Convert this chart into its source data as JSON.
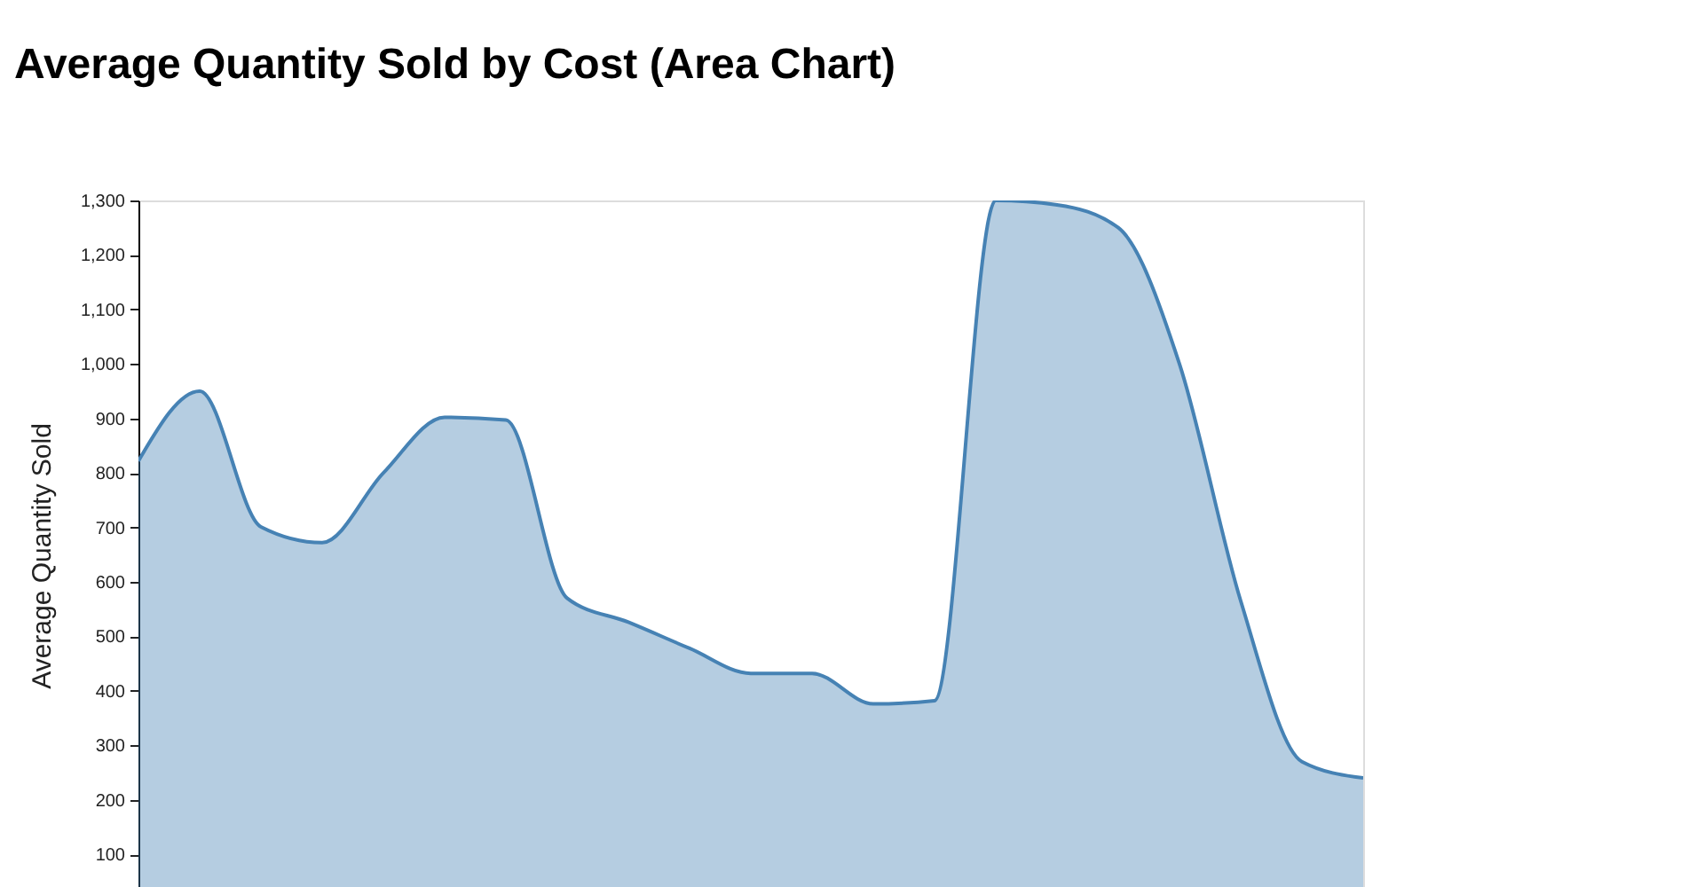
{
  "chart_data": {
    "type": "area",
    "title": "Average Quantity Sold by Cost (Area Chart)",
    "ylabel": "Average Quantity Sold",
    "categories": [
      null,
      null,
      null,
      null,
      null,
      null,
      null,
      null,
      null,
      null,
      null,
      null,
      null,
      null,
      null,
      null,
      null,
      null,
      null,
      null,
      null
    ],
    "values": [
      822,
      950,
      701,
      672,
      800,
      902,
      897,
      570,
      526,
      478,
      432,
      432,
      376,
      382,
      1300,
      1292,
      1250,
      1000,
      565,
      270,
      240
    ],
    "color": "#4682b4",
    "ylim": [
      40,
      1300
    ],
    "yticks": [
      100,
      200,
      300,
      400,
      500,
      600,
      700,
      800,
      900,
      {
        "value": 1000,
        "label": "1,000"
      },
      {
        "value": 1100,
        "label": "1,100"
      },
      {
        "value": 1200,
        "label": "1,200"
      },
      {
        "value": 1300,
        "label": "1,300"
      }
    ]
  }
}
